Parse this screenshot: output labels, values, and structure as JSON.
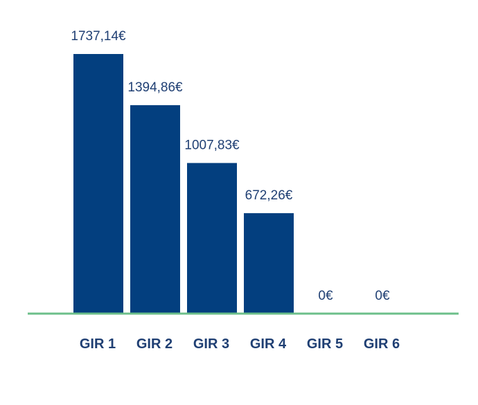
{
  "chart_data": {
    "type": "bar",
    "categories": [
      "GIR 1",
      "GIR 2",
      "GIR 3",
      "GIR 4",
      "GIR 5",
      "GIR 6"
    ],
    "values": [
      1737.14,
      1394.86,
      1007.83,
      672.26,
      0,
      0
    ],
    "value_labels": [
      "1737,14€",
      "1394,86€",
      "1007,83€",
      "672,26€",
      "0€",
      "0€"
    ],
    "title": "",
    "xlabel": "",
    "ylabel": "",
    "ylim": [
      0,
      1737.14
    ],
    "grid": false,
    "legend": "none",
    "colors": {
      "bar": "#033f7f",
      "baseline": "#6cbf8a",
      "text": "#1f3f73"
    }
  }
}
